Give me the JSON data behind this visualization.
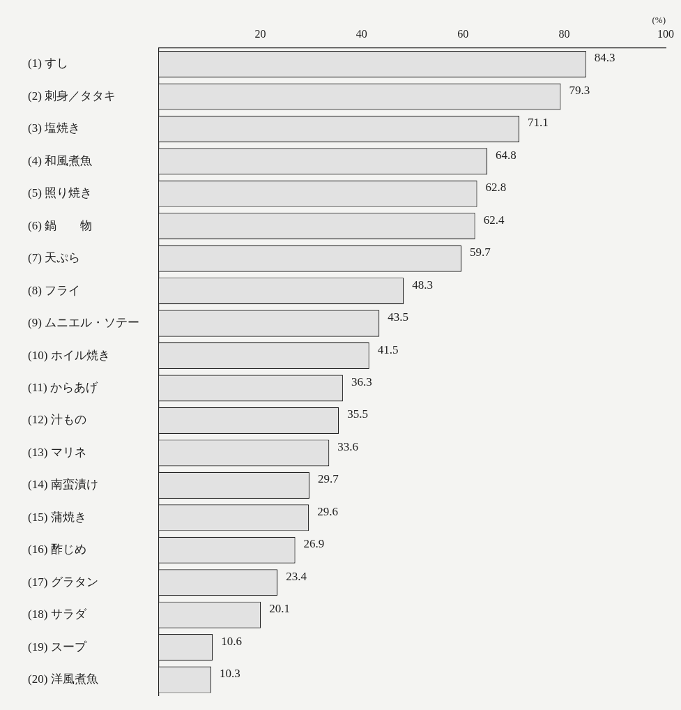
{
  "chart_data": {
    "type": "bar",
    "orientation": "horizontal",
    "xlabel": "(%)",
    "categories": [
      "(1) すし",
      "(2) 刺身／タタキ",
      "(3) 塩焼き",
      "(4) 和風煮魚",
      "(5) 照り焼き",
      "(6) 鍋　　物",
      "(7) 天ぷら",
      "(8) フライ",
      "(9) ムニエル・ソテー",
      "(10) ホイル焼き",
      "(11) からあげ",
      "(12) 汁もの",
      "(13) マリネ",
      "(14) 南蛮漬け",
      "(15) 蒲焼き",
      "(16) 酢じめ",
      "(17) グラタン",
      "(18) サラダ",
      "(19) スープ",
      "(20) 洋風煮魚"
    ],
    "values": [
      84.3,
      79.3,
      71.1,
      64.8,
      62.8,
      62.4,
      59.7,
      48.3,
      43.5,
      41.5,
      36.3,
      35.5,
      33.6,
      29.7,
      29.6,
      26.9,
      23.4,
      20.1,
      10.6,
      10.3
    ],
    "color": "#e2e2e2",
    "xlim": [
      0,
      100
    ],
    "xticks": [
      20,
      40,
      60,
      80,
      100
    ],
    "data_labels": true,
    "grid": false,
    "legend": false
  }
}
